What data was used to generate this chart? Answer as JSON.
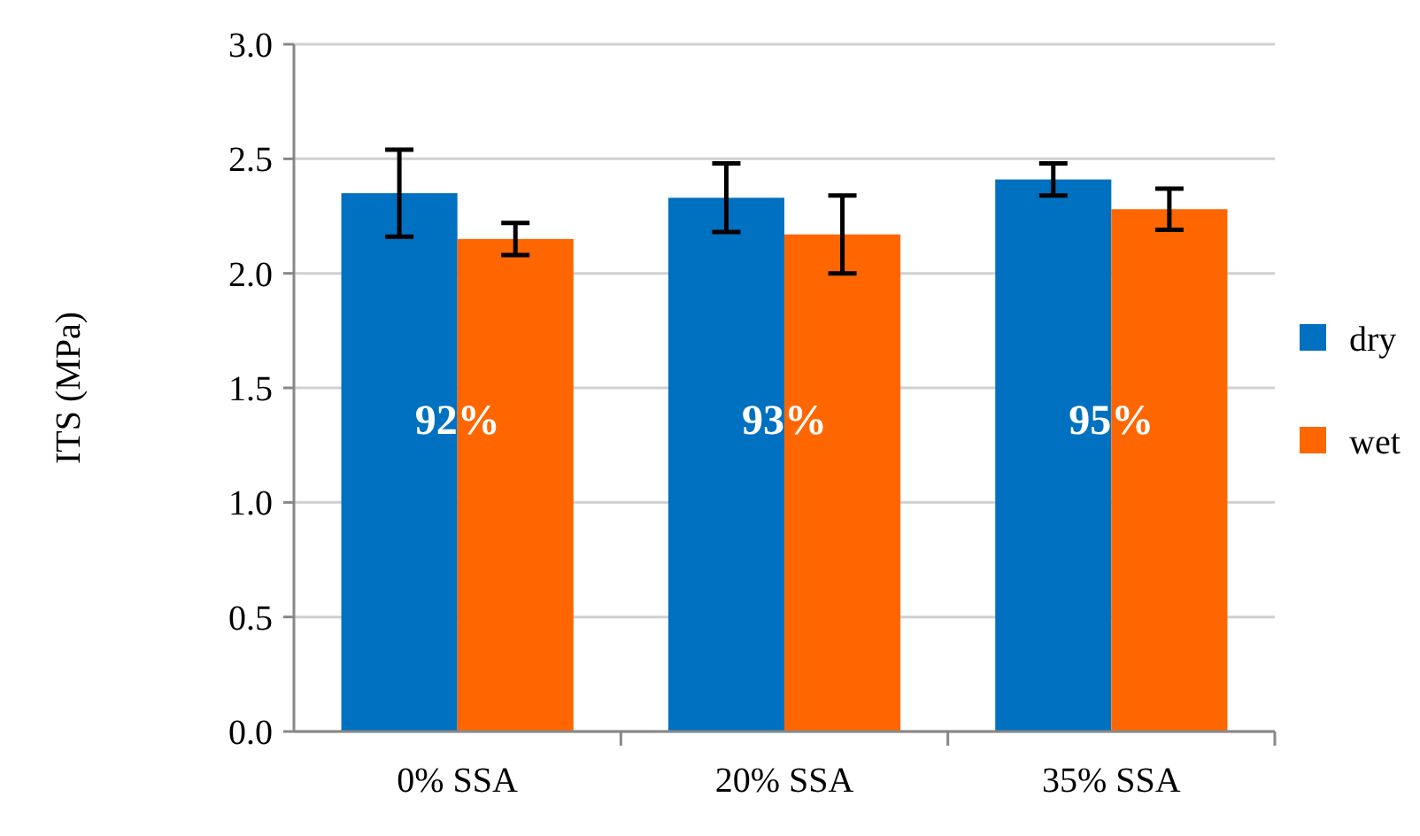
{
  "chart_data": {
    "type": "bar",
    "ylabel": "ITS (MPa)",
    "categories": [
      "0% SSA",
      "20% SSA",
      "35% SSA"
    ],
    "series": [
      {
        "name": "dry",
        "color": "#0070c0",
        "values": [
          2.35,
          2.33,
          2.41
        ],
        "errors": [
          0.19,
          0.15,
          0.07
        ]
      },
      {
        "name": "wet",
        "color": "#ff6600",
        "values": [
          2.15,
          2.17,
          2.28
        ],
        "errors": [
          0.07,
          0.17,
          0.09
        ]
      }
    ],
    "ylim": [
      0,
      3
    ],
    "yticks": [
      {
        "value": 0,
        "label": "0.0"
      },
      {
        "value": 0.5,
        "label": "0.5"
      },
      {
        "value": 1,
        "label": "1.0"
      },
      {
        "value": 1.5,
        "label": "1.5"
      },
      {
        "value": 2,
        "label": "2.0"
      },
      {
        "value": 2.5,
        "label": "2.5"
      },
      {
        "value": 3,
        "label": "3.0"
      }
    ],
    "grid": "y",
    "legend": "right",
    "annotations": [
      {
        "text": "92%",
        "x": "0% SSA",
        "y": 1.3
      },
      {
        "text": "93%",
        "x": "20% SSA",
        "y": 1.3
      },
      {
        "text": "95%",
        "x": "35% SSA",
        "y": 1.3
      }
    ]
  }
}
